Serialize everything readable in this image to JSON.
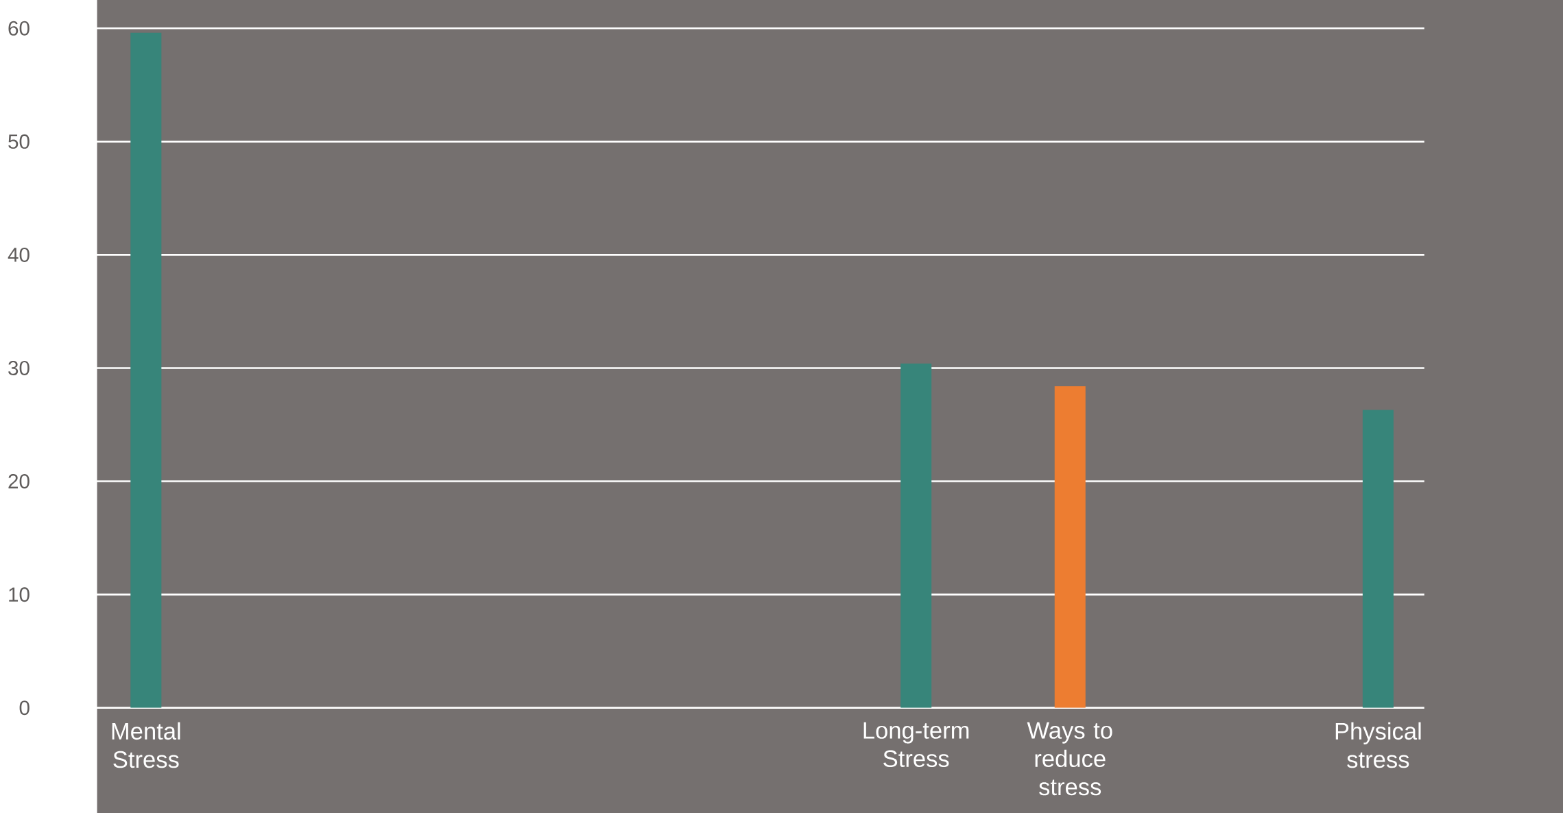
{
  "chart_data": {
    "type": "bar",
    "categories": [
      "Mental Stress",
      null,
      null,
      null,
      null,
      "Long-term Stress",
      "Ways to reduce stress",
      null,
      "Physical stress"
    ],
    "values": [
      59.6,
      null,
      null,
      null,
      null,
      30.4,
      28.4,
      null,
      26.3
    ],
    "colors": [
      "#37857a",
      null,
      null,
      null,
      null,
      "#37857a",
      "#ed7d31",
      null,
      "#37857a"
    ],
    "ylim": [
      0,
      60
    ],
    "yticks": [
      0,
      10,
      20,
      30,
      40,
      50,
      60
    ],
    "grid": "y"
  }
}
